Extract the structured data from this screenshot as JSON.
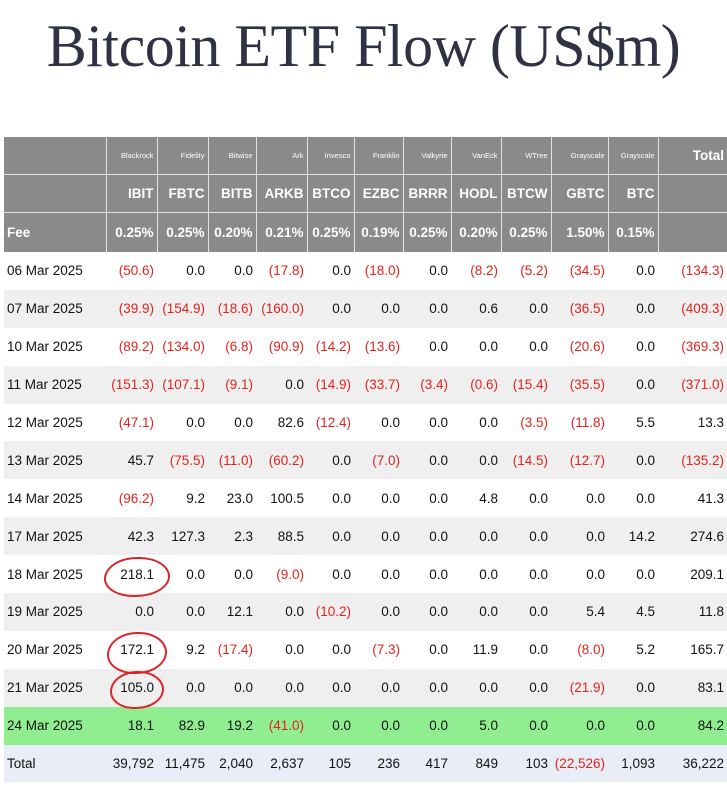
{
  "title": "Bitcoin ETF Flow (US$m)",
  "header": {
    "issuers": [
      "Blackrock",
      "Fidelity",
      "Bitwise",
      "Ark",
      "Invesco",
      "Franklin",
      "Valkyrie",
      "VanEck",
      "WTree",
      "Grayscale",
      "Grayscale"
    ],
    "total_label": "Total",
    "tickers": [
      "IBIT",
      "FBTC",
      "BITB",
      "ARKB",
      "BTCO",
      "EZBC",
      "BRRR",
      "HODL",
      "BTCW",
      "GBTC",
      "BTC"
    ],
    "fee_label": "Fee",
    "fees": [
      "0.25%",
      "0.25%",
      "0.20%",
      "0.21%",
      "0.25%",
      "0.19%",
      "0.25%",
      "0.20%",
      "0.25%",
      "1.50%",
      "0.15%"
    ]
  },
  "rows": [
    {
      "date": "06 Mar 2025",
      "values": [
        "(50.6)",
        "0.0",
        "0.0",
        "(17.8)",
        "0.0",
        "(18.0)",
        "0.0",
        "(8.2)",
        "(5.2)",
        "(34.5)",
        "0.0",
        "(134.3)"
      ]
    },
    {
      "date": "07 Mar 2025",
      "values": [
        "(39.9)",
        "(154.9)",
        "(18.6)",
        "(160.0)",
        "0.0",
        "0.0",
        "0.0",
        "0.6",
        "0.0",
        "(36.5)",
        "0.0",
        "(409.3)"
      ]
    },
    {
      "date": "10 Mar 2025",
      "values": [
        "(89.2)",
        "(134.0)",
        "(6.8)",
        "(90.9)",
        "(14.2)",
        "(13.6)",
        "0.0",
        "0.0",
        "0.0",
        "(20.6)",
        "0.0",
        "(369.3)"
      ]
    },
    {
      "date": "11 Mar 2025",
      "values": [
        "(151.3)",
        "(107.1)",
        "(9.1)",
        "0.0",
        "(14.9)",
        "(33.7)",
        "(3.4)",
        "(0.6)",
        "(15.4)",
        "(35.5)",
        "0.0",
        "(371.0)"
      ]
    },
    {
      "date": "12 Mar 2025",
      "values": [
        "(47.1)",
        "0.0",
        "0.0",
        "82.6",
        "(12.4)",
        "0.0",
        "0.0",
        "0.0",
        "(3.5)",
        "(11.8)",
        "5.5",
        "13.3"
      ]
    },
    {
      "date": "13 Mar 2025",
      "values": [
        "45.7",
        "(75.5)",
        "(11.0)",
        "(60.2)",
        "0.0",
        "(7.0)",
        "0.0",
        "0.0",
        "(14.5)",
        "(12.7)",
        "0.0",
        "(135.2)"
      ]
    },
    {
      "date": "14 Mar 2025",
      "values": [
        "(96.2)",
        "9.2",
        "23.0",
        "100.5",
        "0.0",
        "0.0",
        "0.0",
        "4.8",
        "0.0",
        "0.0",
        "0.0",
        "41.3"
      ]
    },
    {
      "date": "17 Mar 2025",
      "values": [
        "42.3",
        "127.3",
        "2.3",
        "88.5",
        "0.0",
        "0.0",
        "0.0",
        "0.0",
        "0.0",
        "0.0",
        "14.2",
        "274.6"
      ]
    },
    {
      "date": "18 Mar 2025",
      "values": [
        "218.1",
        "0.0",
        "0.0",
        "(9.0)",
        "0.0",
        "0.0",
        "0.0",
        "0.0",
        "0.0",
        "0.0",
        "0.0",
        "209.1"
      ]
    },
    {
      "date": "19 Mar 2025",
      "values": [
        "0.0",
        "0.0",
        "12.1",
        "0.0",
        "(10.2)",
        "0.0",
        "0.0",
        "0.0",
        "0.0",
        "5.4",
        "4.5",
        "11.8"
      ]
    },
    {
      "date": "20 Mar 2025",
      "values": [
        "172.1",
        "9.2",
        "(17.4)",
        "0.0",
        "0.0",
        "(7.3)",
        "0.0",
        "11.9",
        "0.0",
        "(8.0)",
        "5.2",
        "165.7"
      ]
    },
    {
      "date": "21 Mar 2025",
      "values": [
        "105.0",
        "0.0",
        "0.0",
        "0.0",
        "0.0",
        "0.0",
        "0.0",
        "0.0",
        "0.0",
        "(21.9)",
        "0.0",
        "83.1"
      ]
    },
    {
      "date": "24 Mar 2025",
      "values": [
        "18.1",
        "82.9",
        "19.2",
        "(41.0)",
        "0.0",
        "0.0",
        "0.0",
        "5.0",
        "0.0",
        "0.0",
        "0.0",
        "84.2"
      ]
    }
  ],
  "total_row": {
    "label": "Total",
    "values": [
      "39,792",
      "11,475",
      "2,040",
      "2,637",
      "105",
      "236",
      "417",
      "849",
      "103",
      "(22,526)",
      "1,093",
      "36,222"
    ]
  },
  "colors": {
    "header_bg": "#8a8a8a",
    "negative": "#e0241d",
    "highlight_row": "#90ee90",
    "total_row_bg": "#e8edf7",
    "circle": "#d8262b"
  }
}
